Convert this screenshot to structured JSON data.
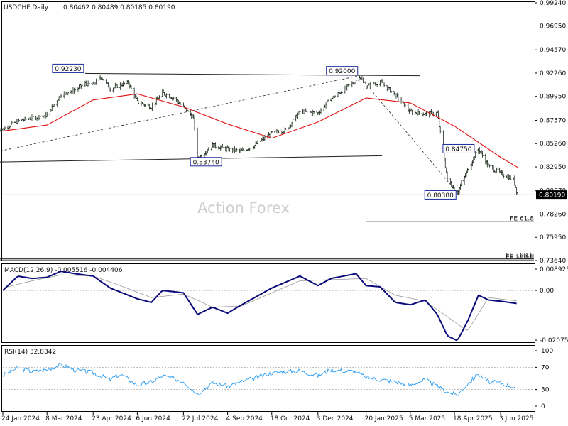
{
  "header": {
    "symbol": "USDCHF,Daily",
    "ohlc": "0.80462 0.80489 0.80185 0.80190"
  },
  "watermark": "Action Forex",
  "chart_data": [
    {
      "type": "candlestick",
      "title": "USDCHF,Daily",
      "ylim": [
        0.7364,
        0.9924
      ],
      "y_ticks": [
        "0.99240",
        "0.96950",
        "0.94570",
        "0.92260",
        "0.89950",
        "0.87570",
        "0.85260",
        "0.82950",
        "0.80570",
        "0.78260",
        "0.75950",
        "0.73640"
      ],
      "last_price": "0.80190",
      "x_ticks": [
        "24 Jan 2024",
        "8 Mar 2024",
        "23 Apr 2024",
        "6 Jun 2024",
        "22 Jul 2024",
        "4 Sep 2024",
        "18 Oct 2024",
        "3 Dec 2024",
        "20 Jan 2025",
        "5 Mar 2025",
        "18 Apr 2025",
        "3 Jun 2025"
      ],
      "close_series": [
        [
          "2024-01-24",
          0.867
        ],
        [
          "2024-02-08",
          0.875
        ],
        [
          "2024-02-22",
          0.878
        ],
        [
          "2024-03-08",
          0.881
        ],
        [
          "2024-03-22",
          0.902
        ],
        [
          "2024-04-05",
          0.906
        ],
        [
          "2024-04-15",
          0.912
        ],
        [
          "2024-04-23",
          0.911
        ],
        [
          "2024-05-01",
          0.919
        ],
        [
          "2024-05-10",
          0.907
        ],
        [
          "2024-05-20",
          0.911
        ],
        [
          "2024-05-28",
          0.913
        ],
        [
          "2024-06-06",
          0.894
        ],
        [
          "2024-06-20",
          0.889
        ],
        [
          "2024-07-01",
          0.903
        ],
        [
          "2024-07-12",
          0.898
        ],
        [
          "2024-07-22",
          0.889
        ],
        [
          "2024-08-01",
          0.878
        ],
        [
          "2024-08-05",
          0.8374
        ],
        [
          "2024-08-20",
          0.851
        ],
        [
          "2024-09-04",
          0.847
        ],
        [
          "2024-09-18",
          0.845
        ],
        [
          "2024-10-01",
          0.851
        ],
        [
          "2024-10-18",
          0.863
        ],
        [
          "2024-11-01",
          0.866
        ],
        [
          "2024-11-15",
          0.884
        ],
        [
          "2024-12-03",
          0.883
        ],
        [
          "2024-12-16",
          0.897
        ],
        [
          "2025-01-10",
          0.915
        ],
        [
          "2025-01-13",
          0.92
        ],
        [
          "2025-01-20",
          0.909
        ],
        [
          "2025-02-03",
          0.914
        ],
        [
          "2025-02-18",
          0.901
        ],
        [
          "2025-03-05",
          0.884
        ],
        [
          "2025-03-20",
          0.882
        ],
        [
          "2025-04-01",
          0.883
        ],
        [
          "2025-04-11",
          0.817
        ],
        [
          "2025-04-21",
          0.8038
        ],
        [
          "2025-05-01",
          0.826
        ],
        [
          "2025-05-12",
          0.8475
        ],
        [
          "2025-05-22",
          0.83
        ],
        [
          "2025-06-03",
          0.823
        ],
        [
          "2025-06-16",
          0.817
        ],
        [
          "2025-06-20",
          0.8019
        ]
      ],
      "sma_series": [
        [
          "2024-01-24",
          0.865
        ],
        [
          "2024-03-08",
          0.871
        ],
        [
          "2024-04-23",
          0.896
        ],
        [
          "2024-06-06",
          0.902
        ],
        [
          "2024-07-22",
          0.889
        ],
        [
          "2024-09-04",
          0.872
        ],
        [
          "2024-10-18",
          0.858
        ],
        [
          "2024-12-03",
          0.874
        ],
        [
          "2025-01-20",
          0.898
        ],
        [
          "2025-03-05",
          0.893
        ],
        [
          "2025-04-18",
          0.87
        ],
        [
          "2025-06-03",
          0.839
        ],
        [
          "2025-06-20",
          0.829
        ]
      ],
      "annotations": [
        {
          "label": "0.92230",
          "date": "2024-04-15",
          "value": 0.9223
        },
        {
          "label": "0.92000",
          "date": "2025-01-13",
          "value": 0.92
        },
        {
          "label": "0.83740",
          "date": "2024-08-05",
          "value": 0.8374
        },
        {
          "label": "0.84750",
          "date": "2025-05-12",
          "value": 0.8475
        },
        {
          "label": "0.80380",
          "date": "2025-04-21",
          "value": 0.8038
        }
      ],
      "trend_lines": [
        {
          "style": "solid",
          "points": [
            [
              "2024-04-15",
              0.9223
            ],
            [
              "2025-03-15",
              0.92
            ]
          ]
        },
        {
          "style": "solid",
          "points": [
            [
              "2024-01-01",
              0.834
            ],
            [
              "2025-02-05",
              0.8405
            ]
          ]
        },
        {
          "style": "dashed",
          "points": [
            [
              "2024-01-01",
              0.841
            ],
            [
              "2025-01-13",
              0.92
            ]
          ]
        },
        {
          "style": "dashed",
          "points": [
            [
              "2025-01-13",
              0.92
            ],
            [
              "2025-04-21",
              0.8038
            ]
          ]
        },
        {
          "style": "dashed",
          "points": [
            [
              "2025-04-21",
              0.8038
            ],
            [
              "2025-05-12",
              0.8475
            ]
          ]
        }
      ],
      "levels": [
        {
          "label": "FE 61.8",
          "value": 0.775,
          "from": "2025-01-20"
        },
        {
          "label": "FE 100.0",
          "value": 0.738,
          "from": "2024-01-01"
        },
        {
          "label": "EE 100.0",
          "value": 0.7364,
          "from": "2024-01-01"
        }
      ]
    },
    {
      "type": "line",
      "title": "MACD(12,26,9) -0.005516 -0.004406",
      "ylim": [
        -0.020759,
        0.008923
      ],
      "y_ticks": [
        "0.008923",
        "0.00",
        "-0.020759"
      ],
      "macd_series": [
        [
          "2024-01-24",
          0.0
        ],
        [
          "2024-02-08",
          0.006
        ],
        [
          "2024-02-22",
          0.005
        ],
        [
          "2024-03-08",
          0.0055
        ],
        [
          "2024-03-22",
          0.008
        ],
        [
          "2024-04-05",
          0.007
        ],
        [
          "2024-04-23",
          0.006
        ],
        [
          "2024-05-10",
          0.001
        ],
        [
          "2024-06-06",
          -0.0035
        ],
        [
          "2024-06-20",
          -0.005
        ],
        [
          "2024-07-01",
          0.0
        ],
        [
          "2024-07-22",
          -0.001
        ],
        [
          "2024-08-05",
          -0.01
        ],
        [
          "2024-08-20",
          -0.007
        ],
        [
          "2024-09-04",
          -0.0095
        ],
        [
          "2024-09-18",
          -0.006
        ],
        [
          "2024-10-18",
          0.001
        ],
        [
          "2024-11-15",
          0.006
        ],
        [
          "2024-12-03",
          0.002
        ],
        [
          "2024-12-16",
          0.005
        ],
        [
          "2025-01-10",
          0.007
        ],
        [
          "2025-01-20",
          0.002
        ],
        [
          "2025-02-03",
          0.0015
        ],
        [
          "2025-02-18",
          -0.005
        ],
        [
          "2025-03-05",
          -0.006
        ],
        [
          "2025-03-20",
          -0.004
        ],
        [
          "2025-04-01",
          -0.01
        ],
        [
          "2025-04-11",
          -0.019
        ],
        [
          "2025-04-21",
          -0.021
        ],
        [
          "2025-05-01",
          -0.013
        ],
        [
          "2025-05-12",
          -0.002
        ],
        [
          "2025-05-22",
          -0.004
        ],
        [
          "2025-06-03",
          -0.0045
        ],
        [
          "2025-06-20",
          -0.0055
        ]
      ],
      "signal_series": [
        [
          "2024-01-24",
          0.001
        ],
        [
          "2024-02-22",
          0.004
        ],
        [
          "2024-03-22",
          0.0065
        ],
        [
          "2024-04-23",
          0.006
        ],
        [
          "2024-05-20",
          0.002
        ],
        [
          "2024-06-20",
          -0.003
        ],
        [
          "2024-07-22",
          -0.0015
        ],
        [
          "2024-08-20",
          -0.007
        ],
        [
          "2024-09-18",
          -0.0065
        ],
        [
          "2024-10-18",
          -0.001
        ],
        [
          "2024-11-15",
          0.004
        ],
        [
          "2024-12-16",
          0.0045
        ],
        [
          "2025-01-20",
          0.005
        ],
        [
          "2025-02-18",
          -0.002
        ],
        [
          "2025-03-20",
          -0.0045
        ],
        [
          "2025-04-11",
          -0.011
        ],
        [
          "2025-05-01",
          -0.017
        ],
        [
          "2025-05-22",
          -0.003
        ],
        [
          "2025-06-20",
          -0.0044
        ]
      ]
    },
    {
      "type": "line",
      "title": "RSI(14) 32.8342",
      "ylim": [
        0,
        100
      ],
      "y_ticks": [
        "100",
        "70",
        "30",
        "0"
      ],
      "rsi_series": [
        [
          "2024-01-24",
          55
        ],
        [
          "2024-02-08",
          70
        ],
        [
          "2024-02-22",
          62
        ],
        [
          "2024-03-08",
          66
        ],
        [
          "2024-03-22",
          75
        ],
        [
          "2024-04-05",
          65
        ],
        [
          "2024-04-23",
          60
        ],
        [
          "2024-05-10",
          48
        ],
        [
          "2024-05-20",
          58
        ],
        [
          "2024-06-06",
          38
        ],
        [
          "2024-06-20",
          44
        ],
        [
          "2024-07-01",
          55
        ],
        [
          "2024-07-22",
          45
        ],
        [
          "2024-08-05",
          22
        ],
        [
          "2024-08-20",
          42
        ],
        [
          "2024-09-04",
          36
        ],
        [
          "2024-09-18",
          44
        ],
        [
          "2024-10-18",
          60
        ],
        [
          "2024-11-15",
          64
        ],
        [
          "2024-12-03",
          55
        ],
        [
          "2024-12-16",
          66
        ],
        [
          "2025-01-10",
          62
        ],
        [
          "2025-01-20",
          52
        ],
        [
          "2025-02-18",
          44
        ],
        [
          "2025-03-05",
          38
        ],
        [
          "2025-03-20",
          48
        ],
        [
          "2025-04-11",
          25
        ],
        [
          "2025-04-21",
          20
        ],
        [
          "2025-05-01",
          40
        ],
        [
          "2025-05-12",
          58
        ],
        [
          "2025-05-22",
          44
        ],
        [
          "2025-06-03",
          42
        ],
        [
          "2025-06-20",
          33
        ]
      ]
    }
  ]
}
